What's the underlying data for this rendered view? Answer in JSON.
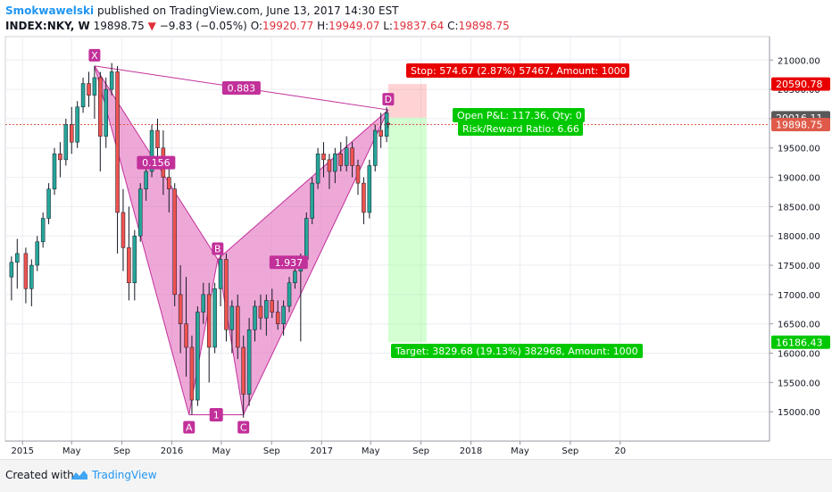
{
  "header": {
    "author": "Smokwawelski",
    "published": "published on TradingView.com, June 13, 2017 14:30 EST",
    "symbol": "INDEX:NKY, W",
    "last": "19898.75",
    "change": "−9.83 (−0.05%)",
    "open_label": "O:",
    "open": "19920.77",
    "high_label": "H:",
    "high": "19949.07",
    "low_label": "L:",
    "low": "19837.64",
    "close_label": "C:",
    "close": "19898.75"
  },
  "footer": {
    "created_with": "Created with",
    "brand": "TradingView"
  },
  "colors": {
    "pattern_fill": "#e060b8",
    "pattern_label": "#c2309a",
    "up": "#26a69a",
    "down": "#ef5350",
    "candle_wick": "#131722",
    "stop": "#e80000",
    "target": "#00c800",
    "price_line": "#e05a4a"
  },
  "chart_data": {
    "type": "candlestick",
    "symbol": "INDEX:NKY",
    "interval": "W",
    "ylim": [
      14500,
      21400
    ],
    "y_ticks": [
      15000,
      15500,
      16000,
      16500,
      17000,
      17500,
      18000,
      18500,
      19000,
      19500,
      20000,
      20500,
      21000
    ],
    "y_tick_labels": [
      "15000.00",
      "15500.00",
      "16000.00",
      "16500.00",
      "17000.00",
      "17500.00",
      "18000.00",
      "18500.00",
      "19000.00",
      "19500.00",
      "20000.00",
      "20500.00",
      "21000.00"
    ],
    "x_axis": [
      "2015",
      "May",
      "Sep",
      "2016",
      "May",
      "Sep",
      "2017",
      "May",
      "Sep",
      "2018",
      "May",
      "Sep",
      "20"
    ],
    "grid": true,
    "candles": [
      {
        "date": "2014-12-05",
        "o": 17300,
        "h": 17650,
        "l": 16900,
        "c": 17550
      },
      {
        "date": "2014-12-19",
        "o": 17550,
        "h": 17950,
        "l": 17100,
        "c": 17700
      },
      {
        "date": "2015-01-09",
        "o": 17700,
        "h": 17800,
        "l": 16850,
        "c": 17100
      },
      {
        "date": "2015-01-23",
        "o": 17100,
        "h": 17600,
        "l": 16800,
        "c": 17500
      },
      {
        "date": "2015-02-06",
        "o": 17500,
        "h": 18000,
        "l": 17400,
        "c": 17900
      },
      {
        "date": "2015-02-20",
        "o": 17900,
        "h": 18400,
        "l": 17800,
        "c": 18300
      },
      {
        "date": "2015-03-06",
        "o": 18300,
        "h": 18900,
        "l": 18200,
        "c": 18800
      },
      {
        "date": "2015-03-20",
        "o": 18800,
        "h": 19500,
        "l": 18700,
        "c": 19400
      },
      {
        "date": "2015-04-03",
        "o": 19400,
        "h": 19600,
        "l": 19000,
        "c": 19300
      },
      {
        "date": "2015-04-17",
        "o": 19300,
        "h": 20000,
        "l": 19200,
        "c": 19900
      },
      {
        "date": "2015-05-01",
        "o": 19900,
        "h": 20200,
        "l": 19400,
        "c": 19600
      },
      {
        "date": "2015-05-15",
        "o": 19600,
        "h": 20300,
        "l": 19500,
        "c": 20200
      },
      {
        "date": "2015-05-29",
        "o": 20200,
        "h": 20700,
        "l": 20100,
        "c": 20600
      },
      {
        "date": "2015-06-12",
        "o": 20600,
        "h": 20800,
        "l": 20200,
        "c": 20400
      },
      {
        "date": "2015-06-26",
        "o": 20400,
        "h": 20900,
        "l": 20000,
        "c": 20700
      },
      {
        "date": "2015-07-10",
        "o": 20700,
        "h": 20800,
        "l": 19100,
        "c": 19700
      },
      {
        "date": "2015-07-24",
        "o": 19700,
        "h": 20700,
        "l": 19500,
        "c": 20500
      },
      {
        "date": "2015-08-07",
        "o": 20500,
        "h": 20950,
        "l": 20400,
        "c": 20800
      },
      {
        "date": "2015-08-21",
        "o": 20800,
        "h": 20900,
        "l": 17700,
        "c": 18400
      },
      {
        "date": "2015-09-04",
        "o": 18400,
        "h": 18800,
        "l": 17400,
        "c": 17800
      },
      {
        "date": "2015-09-18",
        "o": 17800,
        "h": 18500,
        "l": 16900,
        "c": 17200
      },
      {
        "date": "2015-10-02",
        "o": 17200,
        "h": 18100,
        "l": 16900,
        "c": 18000
      },
      {
        "date": "2015-10-16",
        "o": 18000,
        "h": 18900,
        "l": 17900,
        "c": 18800
      },
      {
        "date": "2015-10-30",
        "o": 18800,
        "h": 19200,
        "l": 18600,
        "c": 19100
      },
      {
        "date": "2015-11-13",
        "o": 19100,
        "h": 19900,
        "l": 19000,
        "c": 19800
      },
      {
        "date": "2015-11-27",
        "o": 19800,
        "h": 20000,
        "l": 19300,
        "c": 19500
      },
      {
        "date": "2015-12-11",
        "o": 19500,
        "h": 19800,
        "l": 18700,
        "c": 19000
      },
      {
        "date": "2015-12-25",
        "o": 19000,
        "h": 19300,
        "l": 18400,
        "c": 18800
      },
      {
        "date": "2016-01-08",
        "o": 18800,
        "h": 18900,
        "l": 16800,
        "c": 17000
      },
      {
        "date": "2016-01-22",
        "o": 17000,
        "h": 17500,
        "l": 16000,
        "c": 16500
      },
      {
        "date": "2016-02-05",
        "o": 16500,
        "h": 17300,
        "l": 15600,
        "c": 16100
      },
      {
        "date": "2016-02-19",
        "o": 16100,
        "h": 16300,
        "l": 14950,
        "c": 15200
      },
      {
        "date": "2016-03-04",
        "o": 15200,
        "h": 16800,
        "l": 15100,
        "c": 16700
      },
      {
        "date": "2016-03-18",
        "o": 16700,
        "h": 17200,
        "l": 16500,
        "c": 17000
      },
      {
        "date": "2016-04-01",
        "o": 17000,
        "h": 17200,
        "l": 15500,
        "c": 16100
      },
      {
        "date": "2016-04-15",
        "o": 16100,
        "h": 17200,
        "l": 16000,
        "c": 17100
      },
      {
        "date": "2016-04-29",
        "o": 17100,
        "h": 17700,
        "l": 16800,
        "c": 17600
      },
      {
        "date": "2016-05-13",
        "o": 17600,
        "h": 17700,
        "l": 16200,
        "c": 16400
      },
      {
        "date": "2016-05-27",
        "o": 16400,
        "h": 16900,
        "l": 16000,
        "c": 16800
      },
      {
        "date": "2016-06-10",
        "o": 16800,
        "h": 17000,
        "l": 15900,
        "c": 16100
      },
      {
        "date": "2016-06-24",
        "o": 16100,
        "h": 16300,
        "l": 14900,
        "c": 15300
      },
      {
        "date": "2016-07-08",
        "o": 15300,
        "h": 16600,
        "l": 15100,
        "c": 16400
      },
      {
        "date": "2016-07-22",
        "o": 16400,
        "h": 16900,
        "l": 16200,
        "c": 16800
      },
      {
        "date": "2016-08-05",
        "o": 16800,
        "h": 17000,
        "l": 16400,
        "c": 16600
      },
      {
        "date": "2016-08-19",
        "o": 16600,
        "h": 17000,
        "l": 16300,
        "c": 16900
      },
      {
        "date": "2016-09-02",
        "o": 16900,
        "h": 17100,
        "l": 16600,
        "c": 16700
      },
      {
        "date": "2016-09-16",
        "o": 16700,
        "h": 16900,
        "l": 16400,
        "c": 16500
      },
      {
        "date": "2016-09-30",
        "o": 16500,
        "h": 16900,
        "l": 16300,
        "c": 16800
      },
      {
        "date": "2016-10-14",
        "o": 16800,
        "h": 17300,
        "l": 16700,
        "c": 17200
      },
      {
        "date": "2016-10-28",
        "o": 17200,
        "h": 17500,
        "l": 17100,
        "c": 17400
      },
      {
        "date": "2016-11-11",
        "o": 17400,
        "h": 17700,
        "l": 16200,
        "c": 17600
      },
      {
        "date": "2016-11-25",
        "o": 17600,
        "h": 18400,
        "l": 17500,
        "c": 18300
      },
      {
        "date": "2016-12-09",
        "o": 18300,
        "h": 19000,
        "l": 18200,
        "c": 18900
      },
      {
        "date": "2016-12-23",
        "o": 18900,
        "h": 19500,
        "l": 18800,
        "c": 19400
      },
      {
        "date": "2017-01-06",
        "o": 19400,
        "h": 19600,
        "l": 19000,
        "c": 19300
      },
      {
        "date": "2017-01-20",
        "o": 19300,
        "h": 19400,
        "l": 18800,
        "c": 19100
      },
      {
        "date": "2017-02-03",
        "o": 19100,
        "h": 19500,
        "l": 18900,
        "c": 19400
      },
      {
        "date": "2017-02-17",
        "o": 19400,
        "h": 19600,
        "l": 19100,
        "c": 19200
      },
      {
        "date": "2017-03-03",
        "o": 19200,
        "h": 19700,
        "l": 19100,
        "c": 19500
      },
      {
        "date": "2017-03-17",
        "o": 19500,
        "h": 19600,
        "l": 19000,
        "c": 19200
      },
      {
        "date": "2017-03-31",
        "o": 19200,
        "h": 19300,
        "l": 18700,
        "c": 18900
      },
      {
        "date": "2017-04-14",
        "o": 18900,
        "h": 19000,
        "l": 18200,
        "c": 18400
      },
      {
        "date": "2017-04-28",
        "o": 18400,
        "h": 19300,
        "l": 18300,
        "c": 19200
      },
      {
        "date": "2017-05-12",
        "o": 19200,
        "h": 19900,
        "l": 19100,
        "c": 19800
      },
      {
        "date": "2017-05-26",
        "o": 19800,
        "h": 20100,
        "l": 19500,
        "c": 19700
      },
      {
        "date": "2017-06-09",
        "o": 19700,
        "h": 20200,
        "l": 19600,
        "c": 20100
      },
      {
        "date": "2017-06-13",
        "o": 19920.77,
        "h": 19949.07,
        "l": 19837.64,
        "c": 19898.75
      }
    ],
    "pattern": {
      "points": [
        {
          "label": "X",
          "date": "2015-06-26",
          "price": 20900
        },
        {
          "label": "A",
          "date": "2016-02-12",
          "price": 14950
        },
        {
          "label": "B",
          "date": "2016-04-22",
          "price": 17600
        },
        {
          "label": "C",
          "date": "2016-06-24",
          "price": 14950
        },
        {
          "label": "D",
          "date": "2017-06-13",
          "price": 20150
        }
      ],
      "ratios": [
        {
          "label": "0.883",
          "line": "X-D"
        },
        {
          "label": "0.156",
          "line": "X-B"
        },
        {
          "label": "1.937",
          "line": "A-D"
        },
        {
          "label": "1",
          "line": "A-C"
        }
      ]
    },
    "position": {
      "entry": 20016.11,
      "stop": 20590.78,
      "target": 16186.43,
      "stop_label": "Stop: 574.67 (2.87%) 57467, Amount: 1000",
      "target_label": "Target: 3829.68 (19.13%) 382968, Amount: 1000",
      "open_pl_label": "Open P&L: 117.36, Qty: 0",
      "rr_label": "Risk/Reward Ratio: 6.66",
      "start": "2017-06-13",
      "end": "2017-09-15"
    },
    "price_line": 19898.75,
    "price_labels": [
      {
        "value": "20590.78",
        "kind": "stop"
      },
      {
        "value": "20016.11",
        "kind": "entry"
      },
      {
        "value": "19898.75",
        "kind": "last"
      },
      {
        "value": "16186.43",
        "kind": "target"
      }
    ]
  }
}
